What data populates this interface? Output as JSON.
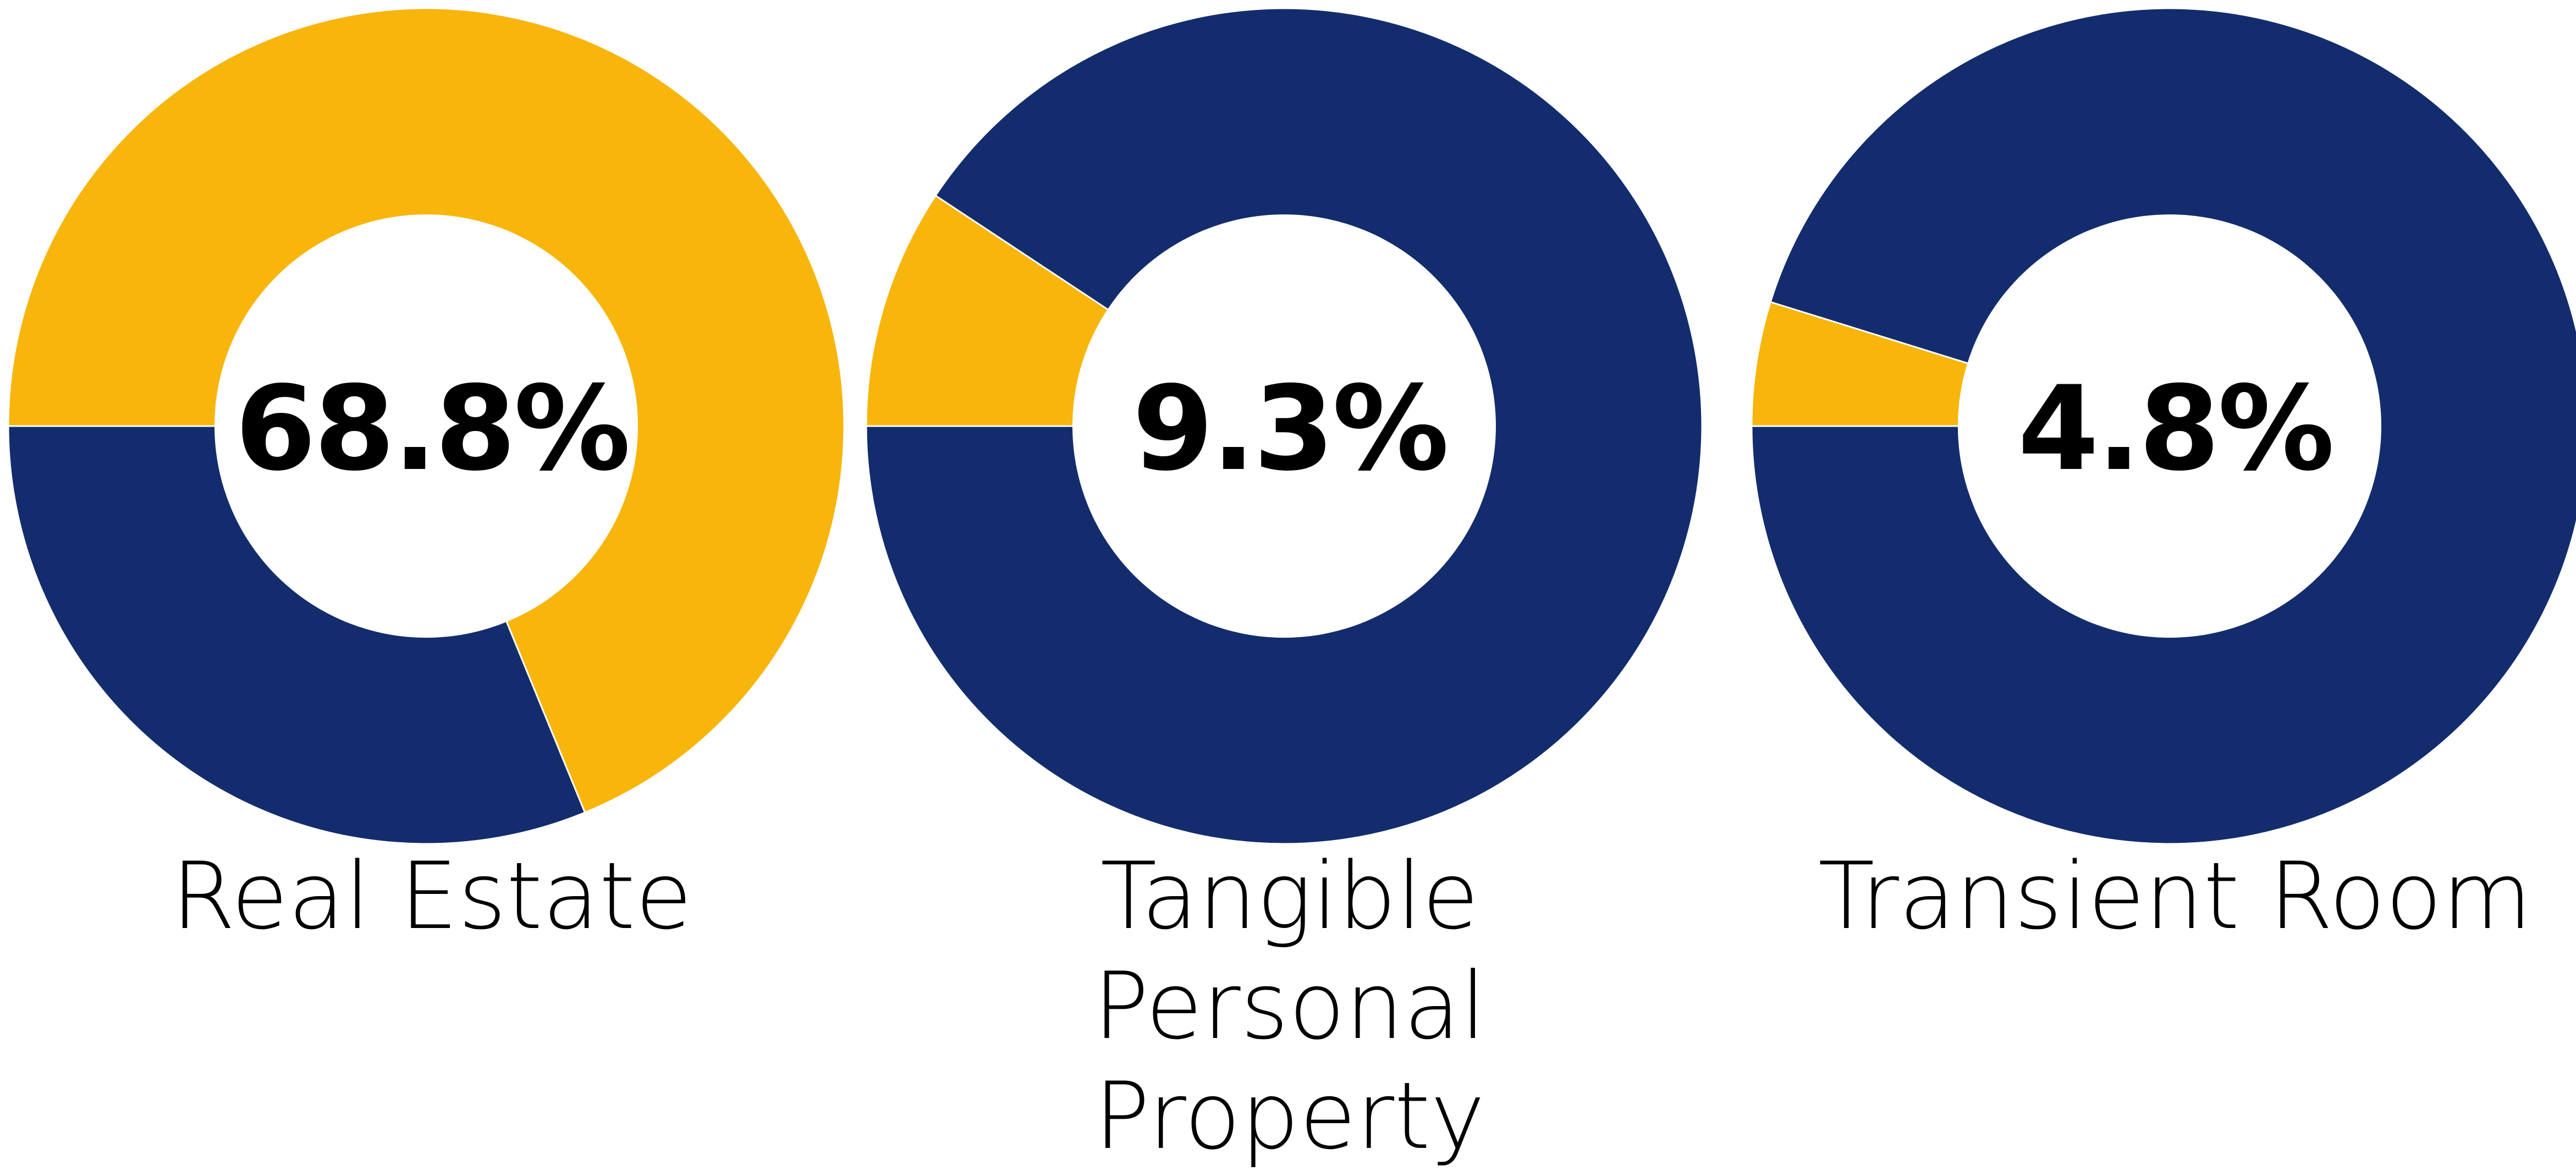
{
  "colors": {
    "highlight": "#F8B50C",
    "remainder": "#132C6D",
    "hole": "#FFFFFF",
    "text": "#000000"
  },
  "chart_data": [
    {
      "type": "pie",
      "label": "Real Estate",
      "value_label": "68.8%",
      "values": [
        68.8,
        31.2
      ],
      "colors": [
        "#F8B50C",
        "#132C6D"
      ]
    },
    {
      "type": "pie",
      "label": "Tangible Personal Property",
      "value_label": "9.3%",
      "values": [
        9.3,
        90.7
      ],
      "colors": [
        "#F8B50C",
        "#132C6D"
      ]
    },
    {
      "type": "pie",
      "label": "Transient Room",
      "value_label": "4.8%",
      "values": [
        4.8,
        95.2
      ],
      "colors": [
        "#F8B50C",
        "#132C6D"
      ]
    }
  ]
}
